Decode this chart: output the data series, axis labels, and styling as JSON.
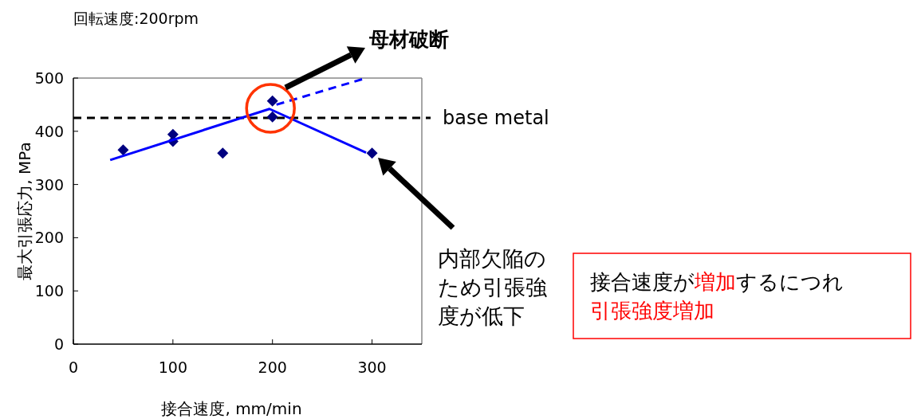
{
  "chart_data": {
    "type": "scatter",
    "xlabel": "接合速度, mm/min",
    "ylabel": "最大引張応力, MPa",
    "xlim": [
      0,
      350
    ],
    "xticks": [
      0,
      100,
      200,
      300
    ],
    "ylim": [
      0,
      500
    ],
    "yticks": [
      0,
      100,
      200,
      300,
      400,
      500
    ],
    "grid": false,
    "series": [
      {
        "color": "#000080",
        "marker": "diamond",
        "x": [
          50,
          100,
          100,
          150,
          200,
          200,
          300
        ],
        "values": [
          365,
          394,
          381,
          359,
          457,
          427,
          359
        ]
      },
      {
        "type": "line",
        "color": "#0000ff",
        "marker": "none",
        "line_style": "solid",
        "x": [
          37,
          197,
          294
        ],
        "values": [
          346,
          442,
          360
        ]
      },
      {
        "type": "line",
        "color": "#0000ff",
        "marker": "none",
        "line_style": "dashed",
        "x": [
          204,
          294
        ],
        "values": [
          450,
          500
        ]
      }
    ],
    "ref_lines": [
      {
        "axis": "y",
        "value": 425,
        "label": "base metal",
        "color": "#000000",
        "line_style": "dashed"
      }
    ],
    "annotations": [
      "回転速度:200rpm",
      "母材破断",
      "内部欠陥のため引張強度が低下",
      "接合速度が",
      "増加",
      "するにつれ",
      "引張強度増加"
    ]
  }
}
